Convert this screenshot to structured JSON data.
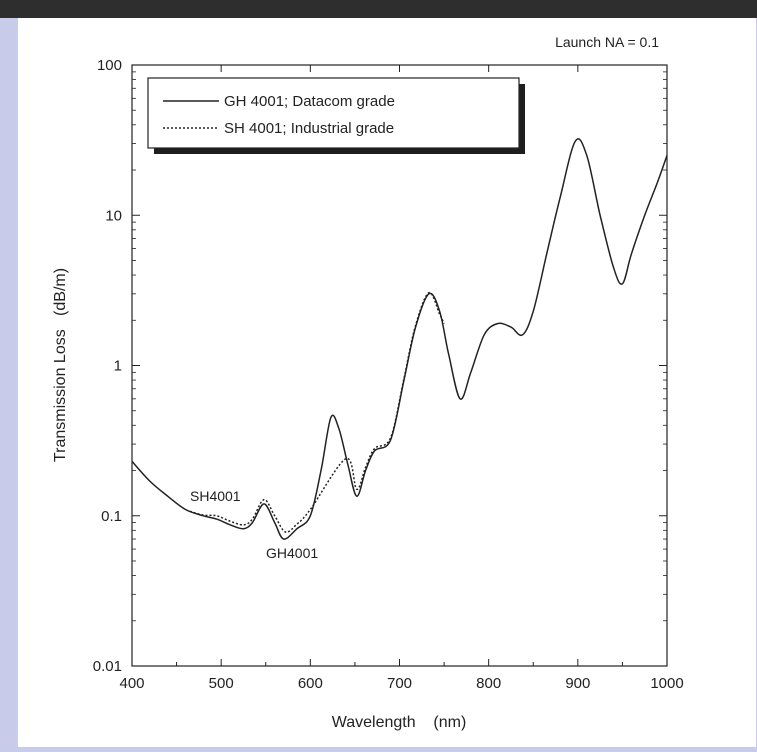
{
  "chart_data": {
    "type": "line",
    "title": "",
    "annotation_top_right": "Launch NA = 0.1",
    "xlabel": "Wavelength    (nm)",
    "ylabel": "Transmission Loss   (dB/m)",
    "x_scale": "linear",
    "y_scale": "log",
    "xlim": [
      400,
      1000
    ],
    "ylim": [
      0.01,
      100
    ],
    "x_ticks": [
      400,
      500,
      600,
      700,
      800,
      900,
      1000
    ],
    "x_tick_labels": [
      "400",
      "500",
      "600",
      "700",
      "800",
      "900",
      "1000"
    ],
    "y_ticks": [
      0.01,
      0.1,
      1,
      10,
      100
    ],
    "y_tick_labels": [
      "0.01",
      "0.1",
      "1",
      "10",
      "100"
    ],
    "grid": false,
    "legend_position": "top-left",
    "legend_style": "boxed with shadow",
    "series": [
      {
        "name": "GH 4001; Datacom grade",
        "line_style": "solid",
        "color": "#222222",
        "x": [
          400,
          420,
          440,
          460,
          480,
          495,
          510,
          525,
          535,
          548,
          560,
          570,
          585,
          600,
          612,
          623,
          632,
          642,
          652,
          662,
          672,
          690,
          705,
          718,
          733,
          745,
          755,
          768,
          780,
          795,
          810,
          825,
          838,
          850,
          865,
          880,
          897,
          910,
          925,
          940,
          950,
          960,
          975,
          990,
          1000
        ],
        "y": [
          0.23,
          0.17,
          0.135,
          0.11,
          0.1,
          0.095,
          0.087,
          0.082,
          0.09,
          0.12,
          0.09,
          0.07,
          0.082,
          0.1,
          0.2,
          0.45,
          0.38,
          0.22,
          0.135,
          0.2,
          0.27,
          0.32,
          0.8,
          1.8,
          3.0,
          2.3,
          1.2,
          0.6,
          0.9,
          1.6,
          1.9,
          1.8,
          1.6,
          2.3,
          5.5,
          13,
          31,
          25,
          10,
          4.5,
          3.5,
          5.5,
          10,
          17,
          25
        ]
      },
      {
        "name": "SH 4001; Industrial grade",
        "line_style": "dotted",
        "color": "#222222",
        "x": [
          465,
          480,
          495,
          510,
          525,
          535,
          548,
          560,
          572,
          585,
          600,
          640,
          652,
          662,
          672,
          690,
          705,
          718,
          733,
          745,
          750
        ],
        "y": [
          0.107,
          0.101,
          0.1,
          0.092,
          0.087,
          0.095,
          0.128,
          0.1,
          0.078,
          0.088,
          0.11,
          0.24,
          0.15,
          0.21,
          0.28,
          0.33,
          0.82,
          1.85,
          3.05,
          2.2,
          1.9
        ]
      }
    ],
    "annotations": [
      {
        "text": "SH4001",
        "x": 480,
        "y": 0.13
      },
      {
        "text": "GH4001",
        "x": 570,
        "y": 0.055
      }
    ]
  }
}
